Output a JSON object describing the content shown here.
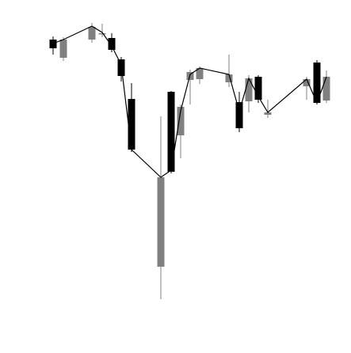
{
  "chart_data": {
    "type": "candlestick",
    "title": "",
    "xlabel": "",
    "ylabel": "",
    "grid": false,
    "legend": "none",
    "colors": {
      "up": "#808080",
      "down": "#000000",
      "line": "#000000",
      "background": "#ffffff"
    },
    "ylim": [
      0,
      446
    ],
    "candles": [
      {
        "x": 67,
        "open": 396,
        "close": 385,
        "high": 400,
        "low": 377
      },
      {
        "x": 80,
        "open": 373,
        "close": 396,
        "high": 399,
        "low": 369
      },
      {
        "x": 116,
        "open": 396,
        "close": 412,
        "high": 417,
        "low": 392
      },
      {
        "x": 129,
        "open": 403,
        "close": 404,
        "high": 416,
        "low": 399
      },
      {
        "x": 141,
        "open": 398,
        "close": 383,
        "high": 404,
        "low": 380
      },
      {
        "x": 153,
        "open": 371,
        "close": 350,
        "high": 374,
        "low": 343
      },
      {
        "x": 166,
        "open": 321,
        "close": 257,
        "high": 341,
        "low": 254
      },
      {
        "x": 203,
        "open": 109,
        "close": 222,
        "high": 299,
        "low": 68
      },
      {
        "x": 216,
        "open": 330,
        "close": 229,
        "high": 331,
        "low": 227
      },
      {
        "x": 228,
        "open": 275,
        "close": 311,
        "high": 314,
        "low": 246
      },
      {
        "x": 240,
        "open": 345,
        "close": 355,
        "high": 358,
        "low": 314
      },
      {
        "x": 252,
        "open": 346,
        "close": 360,
        "high": 362,
        "low": 340
      },
      {
        "x": 289,
        "open": 342,
        "close": 352,
        "high": 377,
        "low": 336
      },
      {
        "x": 302,
        "open": 317,
        "close": 284,
        "high": 330,
        "low": 279
      },
      {
        "x": 314,
        "open": 318,
        "close": 347,
        "high": 351,
        "low": 304
      },
      {
        "x": 326,
        "open": 349,
        "close": 320,
        "high": 351,
        "low": 316
      },
      {
        "x": 338,
        "open": 301,
        "close": 304,
        "high": 320,
        "low": 297
      },
      {
        "x": 387,
        "open": 337,
        "close": 346,
        "high": 349,
        "low": 320
      },
      {
        "x": 400,
        "open": 367,
        "close": 316,
        "high": 370,
        "low": 314
      },
      {
        "x": 412,
        "open": 319,
        "close": 349,
        "high": 357,
        "low": 316
      }
    ],
    "line": [
      {
        "x": 67,
        "y": 391
      },
      {
        "x": 80,
        "y": 396
      },
      {
        "x": 116,
        "y": 413
      },
      {
        "x": 129,
        "y": 405
      },
      {
        "x": 141,
        "y": 388
      },
      {
        "x": 153,
        "y": 364
      },
      {
        "x": 166,
        "y": 257
      },
      {
        "x": 203,
        "y": 222
      },
      {
        "x": 216,
        "y": 231
      },
      {
        "x": 228,
        "y": 306
      },
      {
        "x": 240,
        "y": 352
      },
      {
        "x": 252,
        "y": 360
      },
      {
        "x": 289,
        "y": 352
      },
      {
        "x": 302,
        "y": 305
      },
      {
        "x": 314,
        "y": 347
      },
      {
        "x": 326,
        "y": 324
      },
      {
        "x": 338,
        "y": 304
      },
      {
        "x": 387,
        "y": 346
      },
      {
        "x": 400,
        "y": 316
      },
      {
        "x": 412,
        "y": 349
      }
    ]
  }
}
